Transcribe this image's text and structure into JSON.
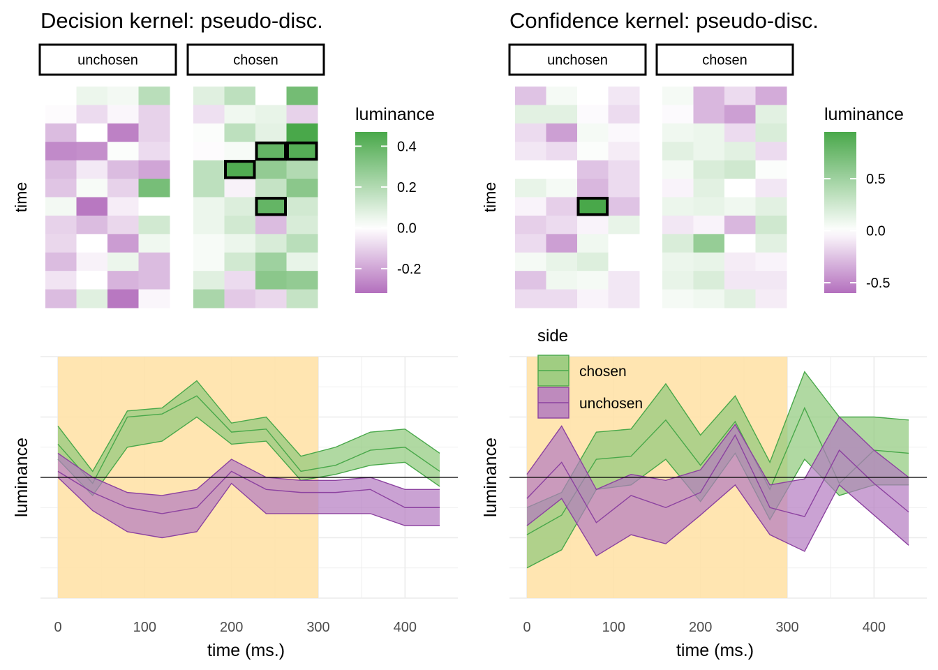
{
  "colors": {
    "purple_dark": "#b36fbd",
    "white": "#ffffff",
    "green_dark": "#49a84a",
    "highlight": "#ffe2a8",
    "chosen_line": "#49a84a",
    "chosen_fill": "#8fc97a",
    "unchosen_line": "#8c42a0",
    "unchosen_fill": "#b37ac0",
    "overlap_fill": "#b07a9c",
    "grid": "#ebebeb"
  },
  "chart_data": [
    {
      "id": "decision-heatmap",
      "type": "heatmap",
      "title": "Decision kernel: pseudo-disc.",
      "ylabel": "time",
      "legend_title": "luminance",
      "color_range": [
        -0.32,
        0.47
      ],
      "legend_ticks": [
        "0.4",
        "0.2",
        "0.0",
        "-0.2"
      ],
      "legend_tick_values": [
        0.4,
        0.2,
        0.0,
        -0.2
      ],
      "panels": [
        {
          "label": "unchosen",
          "values": [
            [
              0.0,
              0.05,
              0.03,
              0.18
            ],
            [
              -0.01,
              -0.08,
              -0.02,
              -0.1
            ],
            [
              -0.15,
              0.0,
              -0.28,
              -0.1
            ],
            [
              -0.26,
              -0.25,
              0.01,
              -0.08
            ],
            [
              -0.15,
              -0.05,
              -0.15,
              -0.2
            ],
            [
              -0.13,
              0.02,
              -0.1,
              0.35
            ],
            [
              0.03,
              -0.3,
              -0.04,
              0.0
            ],
            [
              -0.1,
              -0.15,
              -0.09,
              0.12
            ],
            [
              -0.09,
              0.0,
              -0.22,
              0.04
            ],
            [
              -0.15,
              -0.03,
              0.05,
              -0.15
            ],
            [
              -0.06,
              0.0,
              -0.17,
              -0.15
            ],
            [
              -0.15,
              0.08,
              -0.3,
              -0.02
            ]
          ],
          "outlined": []
        },
        {
          "label": "chosen",
          "values": [
            [
              0.08,
              0.17,
              0.0,
              0.36
            ],
            [
              -0.07,
              0.04,
              0.06,
              -0.1
            ],
            [
              0.01,
              0.17,
              0.07,
              0.47
            ],
            [
              -0.01,
              0.02,
              0.4,
              0.44
            ],
            [
              0.17,
              0.45,
              0.28,
              0.2
            ],
            [
              0.17,
              -0.03,
              0.15,
              0.3
            ],
            [
              0.05,
              0.09,
              0.4,
              0.12
            ],
            [
              0.05,
              0.12,
              -0.15,
              0.1
            ],
            [
              0.02,
              0.05,
              0.1,
              0.18
            ],
            [
              0.02,
              0.12,
              0.25,
              0.06
            ],
            [
              0.08,
              -0.08,
              0.3,
              0.28
            ],
            [
              0.22,
              -0.12,
              -0.09,
              0.15
            ]
          ],
          "outlined": [
            [
              3,
              2
            ],
            [
              3,
              3
            ],
            [
              4,
              1
            ],
            [
              6,
              2
            ]
          ]
        }
      ]
    },
    {
      "id": "confidence-heatmap",
      "type": "heatmap",
      "title": "Confidence kernel: pseudo-disc.",
      "ylabel": "time",
      "legend_title": "luminance",
      "color_range": [
        -0.6,
        0.95
      ],
      "legend_ticks": [
        "0.5",
        "0.0",
        "-0.5"
      ],
      "legend_tick_values": [
        0.5,
        0.0,
        -0.5
      ],
      "panels": [
        {
          "label": "unchosen",
          "values": [
            [
              -0.25,
              0.05,
              0.0,
              -0.1
            ],
            [
              0.15,
              0.15,
              -0.02,
              -0.15
            ],
            [
              -0.15,
              -0.4,
              0.05,
              -0.03
            ],
            [
              -0.1,
              -0.15,
              0.02,
              -0.08
            ],
            [
              0.0,
              0.0,
              -0.25,
              -0.15
            ],
            [
              0.12,
              0.05,
              -0.3,
              -0.15
            ],
            [
              -0.05,
              -0.2,
              0.95,
              -0.25
            ],
            [
              -0.2,
              -0.15,
              -0.05,
              0.12
            ],
            [
              -0.15,
              -0.4,
              0.08,
              0.0
            ],
            [
              0.05,
              0.12,
              0.18,
              0.0
            ],
            [
              -0.25,
              0.08,
              0.05,
              -0.1
            ],
            [
              -0.15,
              -0.15,
              -0.05,
              -0.1
            ]
          ],
          "outlined": [
            [
              6,
              2
            ]
          ]
        },
        {
          "label": "chosen",
          "values": [
            [
              0.05,
              -0.3,
              -0.15,
              -0.35
            ],
            [
              -0.02,
              -0.3,
              -0.4,
              0.15
            ],
            [
              0.08,
              0.1,
              -0.15,
              0.2
            ],
            [
              0.15,
              0.1,
              0.15,
              -0.15
            ],
            [
              0.05,
              0.2,
              0.25,
              0.02
            ],
            [
              -0.05,
              0.15,
              0.0,
              -0.1
            ],
            [
              0.1,
              0.12,
              0.08,
              0.15
            ],
            [
              -0.1,
              -0.05,
              -0.3,
              0.25
            ],
            [
              0.2,
              0.55,
              0.0,
              0.15
            ],
            [
              0.1,
              0.12,
              -0.08,
              -0.05
            ],
            [
              0.12,
              0.2,
              -0.1,
              -0.1
            ],
            [
              0.05,
              0.08,
              0.15,
              -0.08
            ]
          ],
          "outlined": []
        }
      ]
    },
    {
      "id": "decision-lines",
      "type": "area",
      "xlabel": "time (ms.)",
      "ylabel": "luminance",
      "xlim": [
        -20,
        460
      ],
      "ylim": [
        -0.4,
        0.4
      ],
      "x_ticks": [
        0,
        100,
        200,
        300,
        400
      ],
      "highlight": [
        0,
        300
      ],
      "zero_line": 0,
      "x": [
        0,
        40,
        80,
        120,
        160,
        200,
        240,
        280,
        320,
        360,
        400,
        440
      ],
      "series": [
        {
          "name": "chosen",
          "mid": [
            0.11,
            -0.02,
            0.2,
            0.21,
            0.27,
            0.15,
            0.16,
            0.02,
            0.04,
            0.09,
            0.1,
            0.02
          ],
          "upper": [
            0.17,
            0.02,
            0.22,
            0.23,
            0.32,
            0.18,
            0.2,
            0.07,
            0.1,
            0.15,
            0.16,
            0.08
          ],
          "lower": [
            0.06,
            -0.06,
            0.1,
            0.12,
            0.2,
            0.11,
            0.12,
            -0.01,
            0.01,
            0.04,
            0.05,
            -0.03
          ]
        },
        {
          "name": "unchosen",
          "mid": [
            0.02,
            -0.05,
            -0.1,
            -0.12,
            -0.1,
            0.02,
            -0.04,
            -0.05,
            -0.05,
            -0.04,
            -0.1,
            -0.1
          ],
          "upper": [
            0.08,
            0.0,
            -0.05,
            -0.06,
            -0.04,
            0.06,
            0.0,
            -0.01,
            -0.01,
            0.0,
            -0.04,
            -0.04
          ],
          "lower": [
            0.0,
            -0.11,
            -0.18,
            -0.2,
            -0.18,
            -0.02,
            -0.12,
            -0.12,
            -0.12,
            -0.12,
            -0.16,
            -0.16
          ]
        }
      ]
    },
    {
      "id": "confidence-lines",
      "type": "area",
      "xlabel": "time (ms.)",
      "ylabel": "luminance",
      "xlim": [
        -20,
        460
      ],
      "ylim": [
        -0.8,
        0.8
      ],
      "x_ticks": [
        0,
        100,
        200,
        300,
        400
      ],
      "highlight": [
        0,
        300
      ],
      "zero_line": 0,
      "legend_title": "side",
      "legend_entries": [
        "chosen",
        "unchosen"
      ],
      "x": [
        0,
        40,
        80,
        120,
        160,
        200,
        240,
        280,
        320,
        360,
        400,
        440
      ],
      "series": [
        {
          "name": "chosen",
          "mid": [
            -0.38,
            -0.25,
            0.12,
            0.14,
            0.38,
            0.08,
            0.37,
            -0.08,
            0.46,
            -0.04,
            0.18,
            0.16
          ],
          "upper": [
            -0.2,
            -0.1,
            0.3,
            0.32,
            0.62,
            0.28,
            0.54,
            0.1,
            0.7,
            0.4,
            0.4,
            0.38
          ],
          "lower": [
            -0.6,
            -0.48,
            -0.08,
            -0.05,
            0.12,
            -0.16,
            0.16,
            -0.28,
            0.12,
            -0.12,
            -0.05,
            -0.05
          ]
        },
        {
          "name": "unchosen",
          "mid": [
            -0.14,
            0.1,
            -0.3,
            -0.12,
            -0.2,
            -0.1,
            0.28,
            -0.2,
            -0.26,
            0.18,
            -0.04,
            -0.23
          ],
          "upper": [
            0.02,
            0.34,
            -0.08,
            0.02,
            -0.02,
            0.05,
            0.35,
            -0.05,
            -0.01,
            0.4,
            0.18,
            0.0
          ],
          "lower": [
            -0.32,
            -0.14,
            -0.52,
            -0.38,
            -0.44,
            -0.25,
            -0.05,
            -0.38,
            -0.49,
            -0.05,
            -0.25,
            -0.45
          ]
        }
      ]
    }
  ]
}
